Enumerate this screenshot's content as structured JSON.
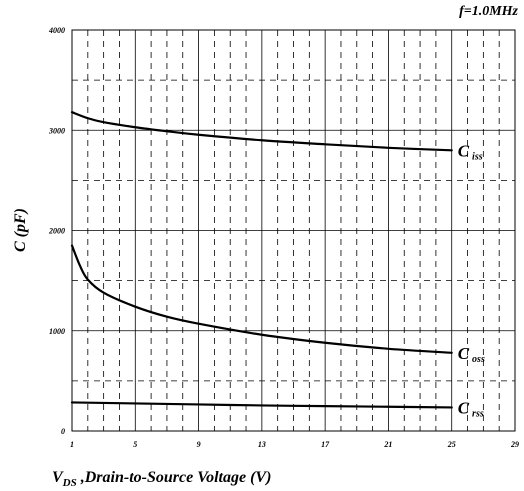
{
  "chart_data": {
    "type": "line",
    "annotation": "f=1.0MHz",
    "ylabel": {
      "main": "C",
      "rest": " (pF)"
    },
    "xlabel": {
      "main": "V",
      "sub": "DS",
      "rest": " ,Drain-to-Source Voltage (V)"
    },
    "xlim": [
      1,
      29
    ],
    "ylim": [
      0,
      4000
    ],
    "x_ticks": [
      1,
      5,
      9,
      13,
      17,
      21,
      25,
      29
    ],
    "x_tick_labels": [
      "1",
      "5",
      "9",
      "13",
      "17",
      "21",
      "25",
      "29"
    ],
    "y_ticks": [
      0,
      1000,
      2000,
      3000,
      4000
    ],
    "y_tick_labels": [
      "0",
      "1000",
      "2000",
      "3000",
      "4000"
    ],
    "series": [
      {
        "name": "Ciss",
        "label_main": "C",
        "label_sub": "iss",
        "x": [
          1,
          2,
          3,
          5,
          7,
          9,
          13,
          17,
          21,
          25
        ],
        "y": [
          3180,
          3120,
          3080,
          3030,
          2990,
          2955,
          2900,
          2860,
          2825,
          2800
        ]
      },
      {
        "name": "Coss",
        "label_main": "C",
        "label_sub": "oss",
        "x": [
          1,
          1.5,
          2,
          3,
          5,
          7,
          9,
          13,
          17,
          21,
          25
        ],
        "y": [
          1850,
          1650,
          1510,
          1380,
          1240,
          1140,
          1070,
          960,
          880,
          820,
          780
        ]
      },
      {
        "name": "Crss",
        "label_main": "C",
        "label_sub": "rss",
        "x": [
          1,
          5,
          9,
          13,
          17,
          21,
          25
        ],
        "y": [
          285,
          275,
          265,
          255,
          248,
          242,
          235
        ]
      }
    ],
    "colors": {
      "line": "#000000",
      "grid": "#000000",
      "background": "#ffffff"
    }
  }
}
